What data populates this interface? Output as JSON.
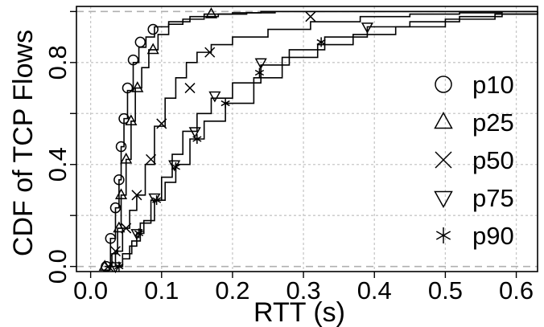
{
  "chart_data": {
    "type": "line",
    "xlabel": "RTT (s)",
    "ylabel": "CDF of TCP Flows",
    "xlim": [
      -0.02,
      0.63
    ],
    "ylim": [
      -0.02,
      1.02
    ],
    "x_ticks": [
      0.0,
      0.1,
      0.2,
      0.3,
      0.4,
      0.5,
      0.6
    ],
    "x_tick_labels": [
      "0.0",
      "0.1",
      "0.2",
      "0.3",
      "0.4",
      "0.5",
      "0.6"
    ],
    "y_ticks": [
      0.0,
      0.4,
      0.8
    ],
    "y_tick_labels": [
      "0.0",
      "0.4",
      "0.8"
    ],
    "y_grid": [
      0.0,
      0.2,
      0.4,
      0.6,
      0.8,
      1.0
    ],
    "grid": true,
    "legend_position": "right",
    "series": [
      {
        "name": "p10",
        "marker": "circle",
        "x": [
          0.02,
          0.028,
          0.035,
          0.04,
          0.043,
          0.047,
          0.052,
          0.06,
          0.068,
          0.078,
          0.09,
          0.11,
          0.14,
          0.18,
          0.22,
          0.26,
          0.63
        ],
        "y": [
          0.0,
          0.11,
          0.23,
          0.34,
          0.47,
          0.58,
          0.69,
          0.8,
          0.86,
          0.9,
          0.94,
          0.96,
          0.98,
          0.99,
          0.995,
          1.0,
          1.0
        ],
        "marker_x": [
          0.022,
          0.028,
          0.035,
          0.04,
          0.043,
          0.047,
          0.052,
          0.06,
          0.07,
          0.088
        ],
        "marker_y": [
          0.0,
          0.11,
          0.23,
          0.34,
          0.47,
          0.58,
          0.7,
          0.81,
          0.88,
          0.93
        ]
      },
      {
        "name": "p25",
        "marker": "triangle-up",
        "x": [
          0.02,
          0.03,
          0.038,
          0.043,
          0.05,
          0.057,
          0.063,
          0.072,
          0.082,
          0.095,
          0.11,
          0.13,
          0.16,
          0.2,
          0.24,
          0.3,
          0.63
        ],
        "y": [
          0.0,
          0.05,
          0.15,
          0.28,
          0.42,
          0.57,
          0.7,
          0.78,
          0.85,
          0.91,
          0.95,
          0.97,
          0.99,
          0.995,
          1.0,
          1.0,
          1.0
        ],
        "marker_x": [
          0.02,
          0.04,
          0.043,
          0.05,
          0.057,
          0.066,
          0.088,
          0.17
        ],
        "marker_y": [
          0.0,
          0.15,
          0.28,
          0.42,
          0.57,
          0.7,
          0.85,
          0.99
        ]
      },
      {
        "name": "p50",
        "marker": "x",
        "x": [
          0.025,
          0.035,
          0.045,
          0.055,
          0.065,
          0.077,
          0.09,
          0.105,
          0.12,
          0.135,
          0.15,
          0.17,
          0.2,
          0.25,
          0.31,
          0.38,
          0.45,
          0.52,
          0.58,
          0.63
        ],
        "y": [
          0.0,
          0.06,
          0.15,
          0.22,
          0.28,
          0.4,
          0.55,
          0.66,
          0.74,
          0.8,
          0.84,
          0.87,
          0.9,
          0.93,
          0.96,
          0.98,
          0.99,
          0.995,
          1.0,
          1.0
        ],
        "marker_x": [
          0.025,
          0.035,
          0.05,
          0.065,
          0.085,
          0.1,
          0.14,
          0.168,
          0.31
        ],
        "marker_y": [
          0.0,
          0.06,
          0.15,
          0.28,
          0.42,
          0.56,
          0.7,
          0.84,
          0.98
        ]
      },
      {
        "name": "p75",
        "marker": "triangle-down",
        "x": [
          0.035,
          0.045,
          0.058,
          0.07,
          0.085,
          0.1,
          0.115,
          0.13,
          0.15,
          0.17,
          0.2,
          0.24,
          0.28,
          0.33,
          0.39,
          0.45,
          0.52,
          0.58,
          0.63
        ],
        "y": [
          0.0,
          0.05,
          0.1,
          0.17,
          0.26,
          0.35,
          0.44,
          0.53,
          0.6,
          0.66,
          0.72,
          0.79,
          0.85,
          0.9,
          0.94,
          0.96,
          0.98,
          0.99,
          1.0
        ],
        "marker_x": [
          0.035,
          0.065,
          0.09,
          0.118,
          0.147,
          0.175,
          0.24,
          0.39
        ],
        "marker_y": [
          0.0,
          0.13,
          0.27,
          0.4,
          0.53,
          0.67,
          0.8,
          0.94
        ]
      },
      {
        "name": "p90",
        "marker": "asterisk",
        "x": [
          0.035,
          0.045,
          0.055,
          0.065,
          0.075,
          0.09,
          0.105,
          0.12,
          0.14,
          0.16,
          0.19,
          0.23,
          0.27,
          0.32,
          0.37,
          0.43,
          0.5,
          0.57,
          0.63
        ],
        "y": [
          0.0,
          0.03,
          0.08,
          0.13,
          0.18,
          0.26,
          0.33,
          0.4,
          0.5,
          0.57,
          0.64,
          0.74,
          0.82,
          0.87,
          0.91,
          0.94,
          0.97,
          0.99,
          1.0
        ],
        "marker_x": [
          0.04,
          0.068,
          0.093,
          0.12,
          0.15,
          0.19,
          0.238,
          0.325
        ],
        "marker_y": [
          0.0,
          0.13,
          0.26,
          0.39,
          0.5,
          0.64,
          0.76,
          0.88
        ]
      }
    ]
  }
}
